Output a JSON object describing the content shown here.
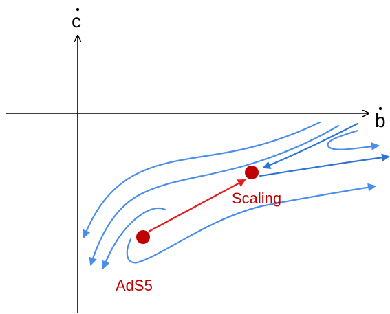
{
  "diagram": {
    "axes": {
      "x_label": "b",
      "y_label": "c"
    },
    "points": {
      "scaling_label": "Scaling",
      "ads5_label": "AdS5"
    },
    "colors": {
      "flow": "#4a8ee8",
      "flow_dark": "#2f74d0",
      "point": "#c00000",
      "highlight_arrow": "#e02020",
      "axis": "#000000"
    }
  }
}
